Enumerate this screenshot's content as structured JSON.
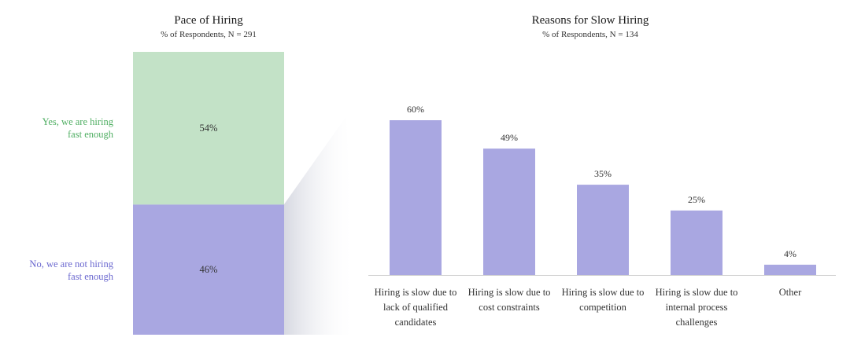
{
  "chart_data": [
    {
      "type": "bar",
      "stacked": true,
      "title": "Pace of Hiring",
      "subtitle": "% of Respondents, N = 291",
      "unit": "%",
      "categories": [
        "Yes, we are hiring fast enough",
        "No, we are not hiring fast enough"
      ],
      "label_lines": [
        [
          "Yes, we are hiring",
          "fast enough"
        ],
        [
          "No, we are not hiring",
          "fast enough"
        ]
      ],
      "values": [
        54,
        46
      ],
      "value_labels": [
        "54%",
        "46%"
      ],
      "colors": [
        "#c3e2c7",
        "#a9a7e1"
      ],
      "label_colors": [
        "#4fae62",
        "#6a67cf"
      ],
      "ylim": [
        0,
        100
      ]
    },
    {
      "type": "bar",
      "title": "Reasons for Slow Hiring",
      "subtitle": "% of Respondents, N = 134",
      "unit": "%",
      "categories": [
        "Hiring is slow due to lack of qualified candidates",
        "Hiring is slow due to cost constraints",
        "Hiring is slow due to competition",
        "Hiring is slow due to internal process challenges",
        "Other"
      ],
      "label_lines": [
        [
          "Hiring is slow due to",
          "lack of qualified",
          "candidates"
        ],
        [
          "Hiring is slow due to",
          "cost constraints"
        ],
        [
          "Hiring is slow due to",
          "competition"
        ],
        [
          "Hiring is slow due to",
          "internal process",
          "challenges"
        ],
        [
          "Other"
        ]
      ],
      "values": [
        60,
        49,
        35,
        25,
        4
      ],
      "value_labels": [
        "60%",
        "49%",
        "35%",
        "25%",
        "4%"
      ],
      "color": "#a9a7e1",
      "ylim": [
        0,
        60
      ]
    }
  ]
}
